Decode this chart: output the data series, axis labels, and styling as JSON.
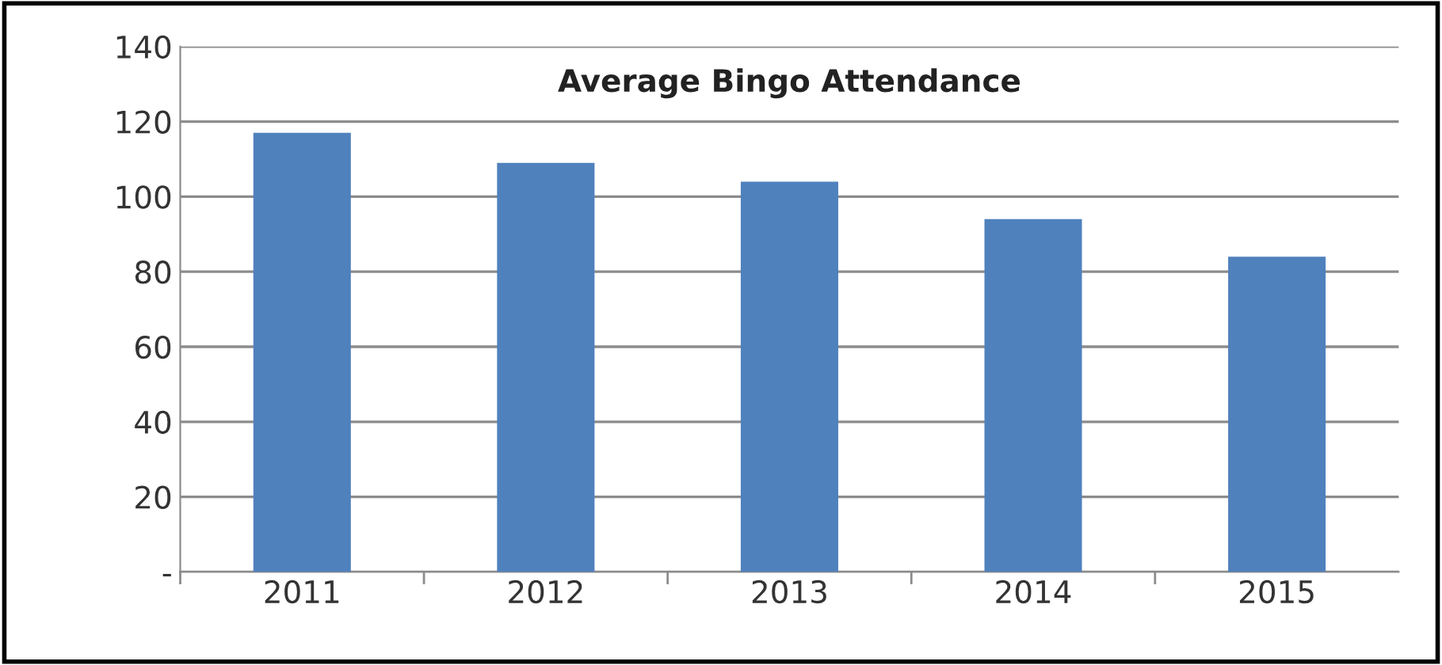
{
  "chart_data": {
    "type": "bar",
    "title": "Average Bingo Attendance",
    "categories": [
      "2011",
      "2012",
      "2013",
      "2014",
      "2015"
    ],
    "values": [
      117,
      109,
      104,
      94,
      84
    ],
    "color": "#4f81bd",
    "ylim": [
      0,
      140
    ],
    "yticks": [
      {
        "value": 0,
        "label": "-"
      },
      20,
      40,
      60,
      80,
      100,
      120,
      140
    ],
    "grid": "y"
  }
}
